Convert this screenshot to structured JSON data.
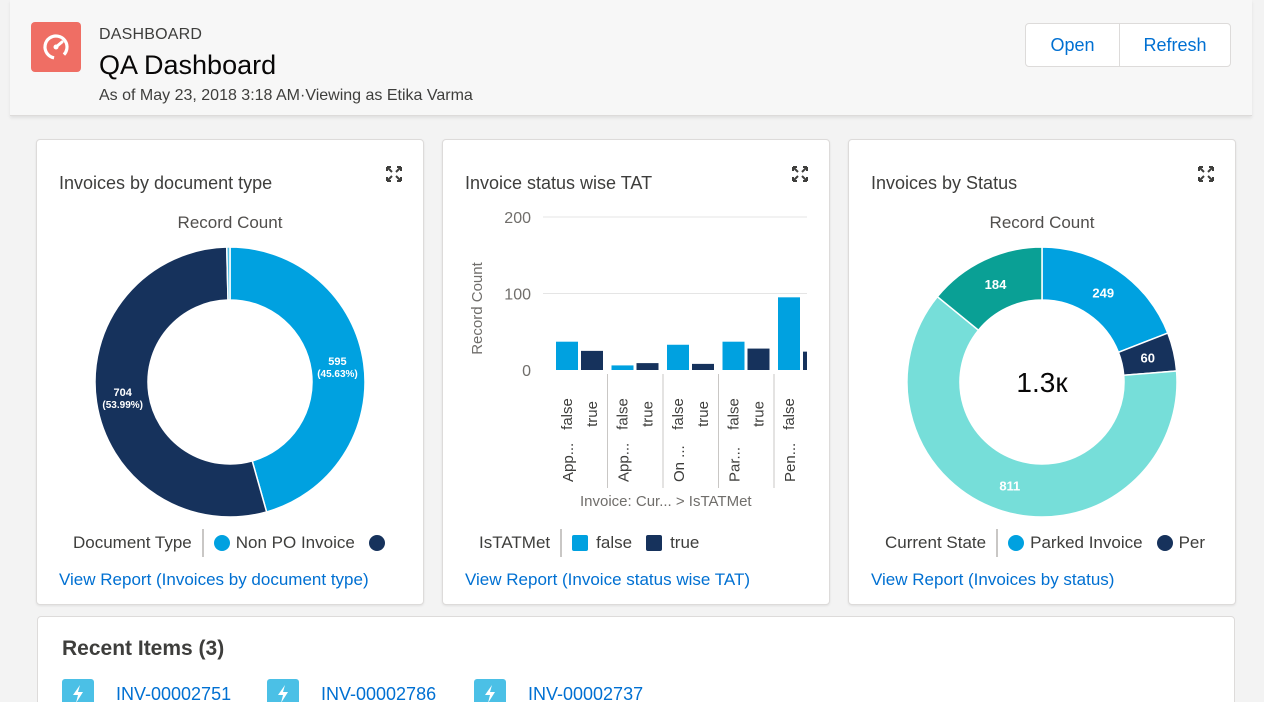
{
  "header": {
    "kicker": "DASHBOARD",
    "title": "QA Dashboard",
    "subtitle": "As of May 23, 2018 3:18 AM·Viewing as Etika Varma",
    "icon": "dashboard-gauge-icon",
    "buttons": {
      "open": "Open",
      "refresh": "Refresh"
    }
  },
  "colors": {
    "navy": "#16325c",
    "blue": "#00a1e0",
    "teal": "#0aa095",
    "aqua": "#76ded9",
    "link": "#0070d2",
    "icon": "#ef6e64"
  },
  "cards": [
    {
      "title": "Invoices by document type",
      "subtitle": "Record Count",
      "legend_title": "Document Type",
      "legend_items": [
        "Non PO Invoice"
      ],
      "link": "View Report (Invoices by document type)"
    },
    {
      "title": "Invoice status wise TAT",
      "legend_title": "IsTATMet",
      "legend_items": [
        "false",
        "true"
      ],
      "link": "View Report (Invoice status wise TAT)"
    },
    {
      "title": "Invoices by Status",
      "subtitle": "Record Count",
      "center_label": "1.3к",
      "legend_title": "Current State",
      "legend_items": [
        "Parked Invoice",
        "Per"
      ],
      "link": "View Report (Invoices by status)"
    }
  ],
  "chart_data": [
    {
      "type": "pie",
      "title": "Invoices by document type",
      "subtitle": "Record Count",
      "slices": [
        {
          "value": 595,
          "label": "595",
          "pct": "(45.63%)",
          "legend": "Non PO Invoice",
          "color": "#00a1e0"
        },
        {
          "value": 704,
          "label": "704",
          "pct": "(53.99%)",
          "color": "#16325c"
        },
        {
          "value": 5,
          "color": "#4bc0e6"
        }
      ]
    },
    {
      "type": "bar",
      "title": "Invoice status wise TAT",
      "ylabel": "Record Count",
      "xlabel": "Invoice: Cur...  > IsTATMet",
      "ylim": [
        0,
        200
      ],
      "yticks": [
        "0",
        "100",
        "200"
      ],
      "groups": [
        "App...",
        "App...",
        "On ...",
        "Par...",
        "Pen..."
      ],
      "series": [
        {
          "name": "false",
          "color": "#00a1e0",
          "values": [
            37,
            6,
            33,
            37,
            95
          ]
        },
        {
          "name": "true",
          "color": "#16325c",
          "values": [
            25,
            9,
            8,
            28,
            24
          ]
        }
      ]
    },
    {
      "type": "pie",
      "title": "Invoices by Status",
      "subtitle": "Record Count",
      "center": "1.3к",
      "slices": [
        {
          "value": 249,
          "label": "249",
          "color": "#00a1e0"
        },
        {
          "value": 60,
          "label": "60",
          "color": "#16325c"
        },
        {
          "value": 811,
          "label": "811",
          "color": "#76ded9"
        },
        {
          "value": 184,
          "label": "184",
          "color": "#0aa095"
        }
      ]
    }
  ],
  "recent": {
    "title": "Recent Items (3)",
    "items": [
      "INV-00002751",
      "INV-00002786",
      "INV-00002737"
    ],
    "icon": "lightning-icon"
  }
}
